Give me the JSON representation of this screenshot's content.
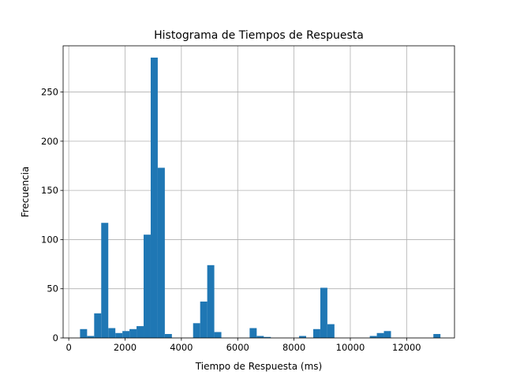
{
  "chart_data": {
    "type": "bar",
    "title": "Histograma de Tiempos de Respuesta",
    "xlabel": "Tiempo de Respuesta (ms)",
    "ylabel": "Frecuencia",
    "xlim": [
      -200,
      13700
    ],
    "ylim": [
      0,
      297
    ],
    "xticks": [
      0,
      2000,
      4000,
      6000,
      8000,
      10000,
      12000
    ],
    "yticks": [
      0,
      50,
      100,
      150,
      200,
      250
    ],
    "grid": true,
    "bar_color": "#1f77b4",
    "bins": [
      {
        "start": 400,
        "end": 651,
        "count": 9
      },
      {
        "start": 651,
        "end": 902,
        "count": 2
      },
      {
        "start": 902,
        "end": 1153,
        "count": 25
      },
      {
        "start": 1153,
        "end": 1404,
        "count": 117
      },
      {
        "start": 1404,
        "end": 1655,
        "count": 10
      },
      {
        "start": 1655,
        "end": 1906,
        "count": 5
      },
      {
        "start": 1906,
        "end": 2157,
        "count": 7
      },
      {
        "start": 2157,
        "end": 2408,
        "count": 9
      },
      {
        "start": 2408,
        "end": 2659,
        "count": 12
      },
      {
        "start": 2659,
        "end": 2910,
        "count": 105
      },
      {
        "start": 2910,
        "end": 3161,
        "count": 285
      },
      {
        "start": 3161,
        "end": 3412,
        "count": 173
      },
      {
        "start": 3412,
        "end": 3663,
        "count": 4
      },
      {
        "start": 4416,
        "end": 4667,
        "count": 15
      },
      {
        "start": 4667,
        "end": 4918,
        "count": 37
      },
      {
        "start": 4918,
        "end": 5169,
        "count": 74
      },
      {
        "start": 5169,
        "end": 5420,
        "count": 6
      },
      {
        "start": 6424,
        "end": 6675,
        "count": 10
      },
      {
        "start": 6675,
        "end": 6926,
        "count": 2
      },
      {
        "start": 6926,
        "end": 7177,
        "count": 1
      },
      {
        "start": 8181,
        "end": 8432,
        "count": 2
      },
      {
        "start": 8683,
        "end": 8934,
        "count": 9
      },
      {
        "start": 8934,
        "end": 9185,
        "count": 51
      },
      {
        "start": 9185,
        "end": 9436,
        "count": 14
      },
      {
        "start": 10691,
        "end": 10942,
        "count": 2
      },
      {
        "start": 10942,
        "end": 11193,
        "count": 5
      },
      {
        "start": 11193,
        "end": 11444,
        "count": 7
      },
      {
        "start": 12950,
        "end": 13201,
        "count": 4
      }
    ]
  }
}
